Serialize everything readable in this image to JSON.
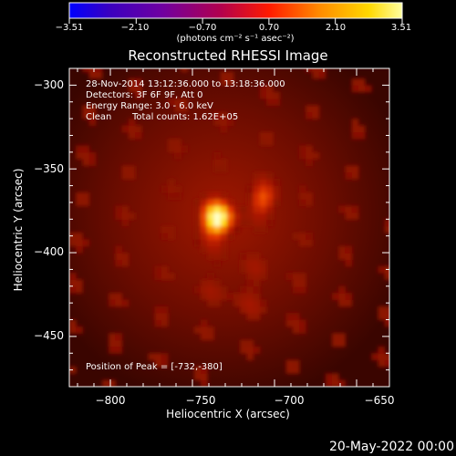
{
  "chart_data": {
    "type": "heatmap",
    "title": "Reconstructed RHESSI Image",
    "xlabel": "Heliocentric X (arcsec)",
    "ylabel": "Heliocentric Y (arcsec)",
    "xlim": [
      -825,
      -630
    ],
    "ylim": [
      -480,
      -290
    ],
    "x_ticks": [
      "−800",
      "−750",
      "−700",
      "−650"
    ],
    "x_tick_values": [
      -800,
      -750,
      -700,
      -650
    ],
    "y_ticks": [
      "−300",
      "−350",
      "−400",
      "−450"
    ],
    "y_tick_values": [
      -300,
      -350,
      -400,
      -450
    ],
    "colorbar": {
      "colormap": "hot",
      "ticks": [
        "−3.51",
        "−2.10",
        "−0.70",
        "0.70",
        "2.10",
        "3.51"
      ],
      "tick_values": [
        -3.51,
        -2.1,
        -0.7,
        0.7,
        2.1,
        3.51
      ],
      "range": [
        -3.51,
        3.51
      ],
      "unit_label": "(photons cm⁻² s⁻¹ asec⁻²)"
    },
    "sources": [
      {
        "x": -735,
        "y": -380,
        "peak": 3.51
      },
      {
        "x": -707,
        "y": -368,
        "peak": 1.9
      },
      {
        "x": -722,
        "y": -420,
        "peak": 0.5
      }
    ],
    "annotations": {
      "time_range": "28-Nov-2014 13:12:36.000 to 13:18:36.000",
      "detectors": "Detectors: 3F 6F 9F, Att 0",
      "energy_range": "Energy Range: 3.0 - 6.0 keV",
      "method": "Clean",
      "total_counts": "Total counts: 1.62E+05",
      "peak_position": "Position of Peak = [-732,-380]"
    }
  },
  "footer_date": "20-May-2022 00:00"
}
